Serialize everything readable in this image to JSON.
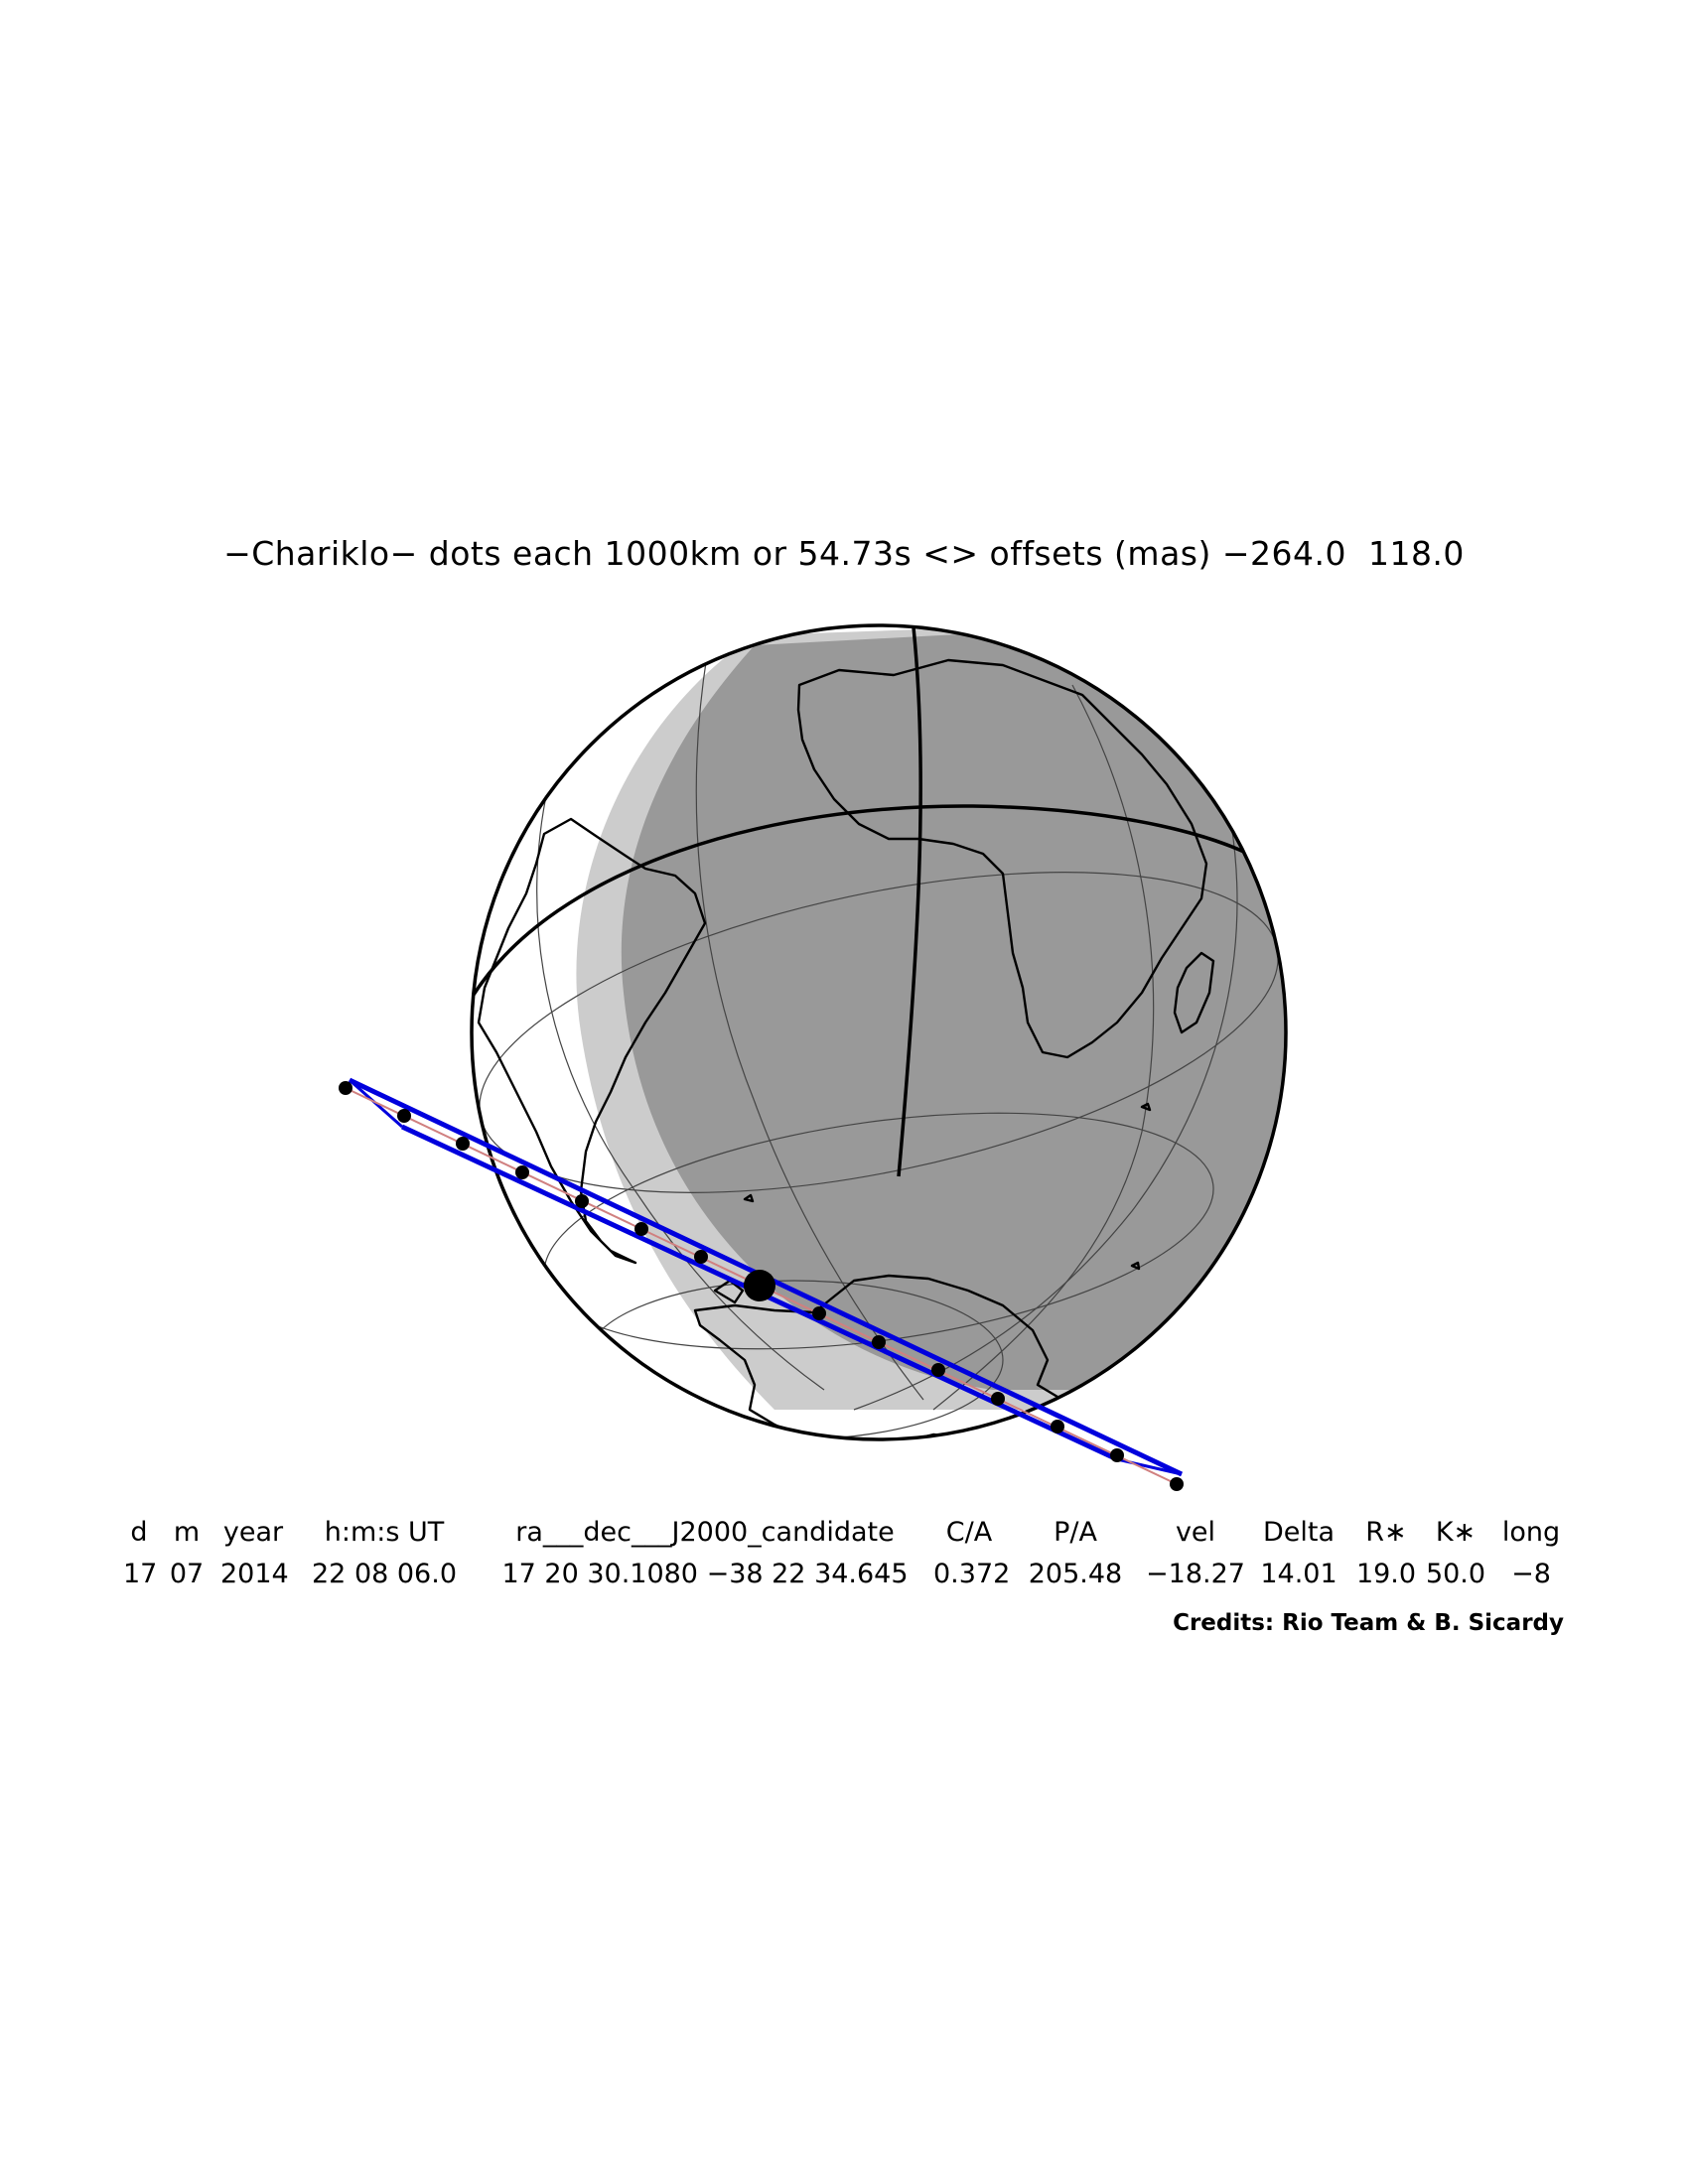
{
  "title": "−Chariklo− dots each 1000km or 54.73s <> offsets (mas) −264.0  118.0",
  "table": {
    "headers": [
      "d",
      "m",
      "year",
      "h:m:s UT",
      "ra___dec___J2000_candidate",
      "C/A",
      "P/A",
      "vel",
      "Delta",
      "R∗",
      "K∗",
      "long"
    ],
    "values": [
      "17",
      "07",
      "2014",
      "22 08 06.0",
      "17 20 30.1080 −38 22 34.645",
      "0.372",
      "205.48",
      "−18.27",
      "14.01",
      "19.0",
      "50.0",
      "−8"
    ]
  },
  "credits": "Credits: Rio Team & B. Sicardy",
  "colors": {
    "night": "#999999",
    "twilight": "#cccccc",
    "day": "#ffffff",
    "path": "#0000dd",
    "centerline": "#d08080",
    "outline": "#000000"
  }
}
